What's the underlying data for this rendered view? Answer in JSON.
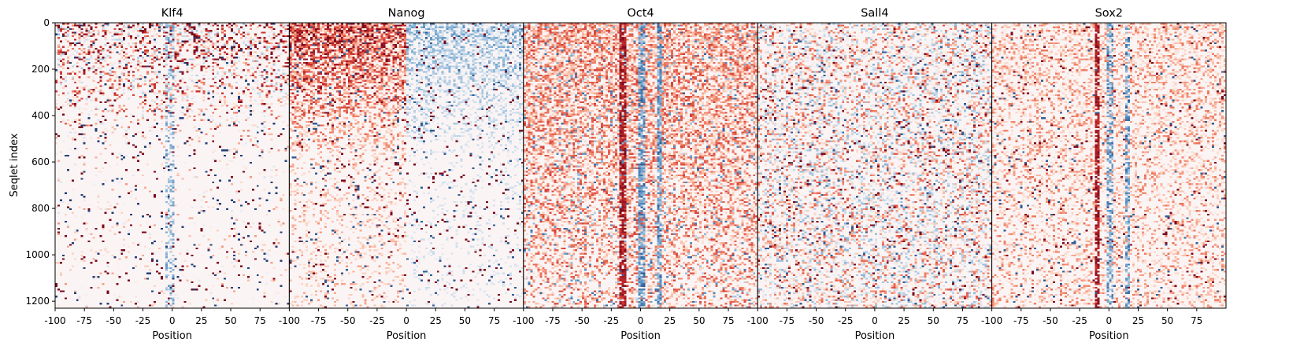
{
  "chart_data": {
    "type": "heatmap",
    "shared_ylabel": "Seqlet index",
    "ylim": [
      1230,
      0
    ],
    "y_ticks": [
      0,
      200,
      400,
      600,
      800,
      1000,
      1200
    ],
    "colormap": "RdBu_r (diverging; red = positive, blue = negative, white = 0)",
    "colors": {
      "positive": "#b2182b",
      "negative": "#2166ac",
      "zero": "#fbf4f4"
    },
    "panels": [
      {
        "title": "Klf4",
        "xlabel": "Position",
        "xlim": [
          -100,
          100
        ],
        "x_tick_labels": [
          "-100",
          "-75",
          "-50",
          "-25",
          "0",
          "25",
          "50",
          "75"
        ],
        "pattern": "broad positive signal in upper rows, weak negative band near position 0, diffuse speckle below"
      },
      {
        "title": "Nanog",
        "xlabel": "Position",
        "xlim": [
          -100,
          100
        ],
        "x_tick_labels": [
          "-100",
          "-75",
          "-50",
          "-25",
          "0",
          "25",
          "50",
          "75"
        ],
        "pattern": "strong positive signal on left half of top ~550 rows, negative on right half"
      },
      {
        "title": "Oct4",
        "xlabel": "Position",
        "xlim": [
          -100,
          100
        ],
        "x_tick_labels": [
          "-100",
          "-75",
          "-50",
          "-25",
          "0",
          "25",
          "50",
          "75"
        ],
        "pattern": "dense positive signal throughout, dark red stripe near position -15, blue stripes near 0 and +15"
      },
      {
        "title": "Sall4",
        "xlabel": "Position",
        "xlim": [
          -100,
          100
        ],
        "x_tick_labels": [
          "-100",
          "-75",
          "-50",
          "-25",
          "0",
          "25",
          "50",
          "75"
        ],
        "pattern": "diffuse mixed positive/negative speckle across all positions"
      },
      {
        "title": "Sox2",
        "xlabel": "Position",
        "xlim": [
          -100,
          100
        ],
        "x_tick_labels": [
          "-100",
          "-75",
          "-50",
          "-25",
          "0",
          "25",
          "50",
          "75"
        ],
        "pattern": "dark red stripe near position -10, blue stripes near 0 and +15"
      }
    ]
  }
}
